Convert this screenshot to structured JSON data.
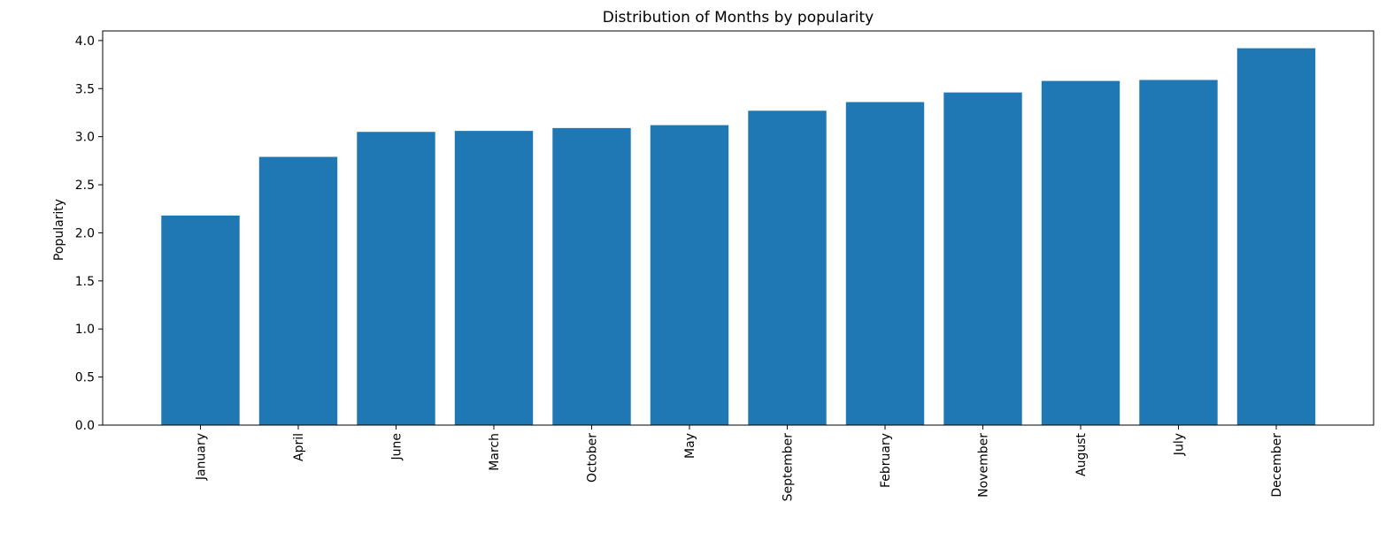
{
  "chart_data": {
    "type": "bar",
    "title": "Distribution of Months by popularity",
    "xlabel": "",
    "ylabel": "Popularity",
    "categories": [
      "January",
      "April",
      "June",
      "March",
      "October",
      "May",
      "September",
      "February",
      "November",
      "August",
      "July",
      "December"
    ],
    "values": [
      2.18,
      2.79,
      3.05,
      3.06,
      3.09,
      3.12,
      3.27,
      3.36,
      3.46,
      3.58,
      3.59,
      3.92
    ],
    "ylim": [
      0,
      4.1
    ],
    "yticks": [
      "0.0",
      "0.5",
      "1.0",
      "1.5",
      "2.0",
      "2.5",
      "3.0",
      "3.5",
      "4.0"
    ],
    "grid": false,
    "legend": "none",
    "bar_color": "#1f77b4"
  }
}
